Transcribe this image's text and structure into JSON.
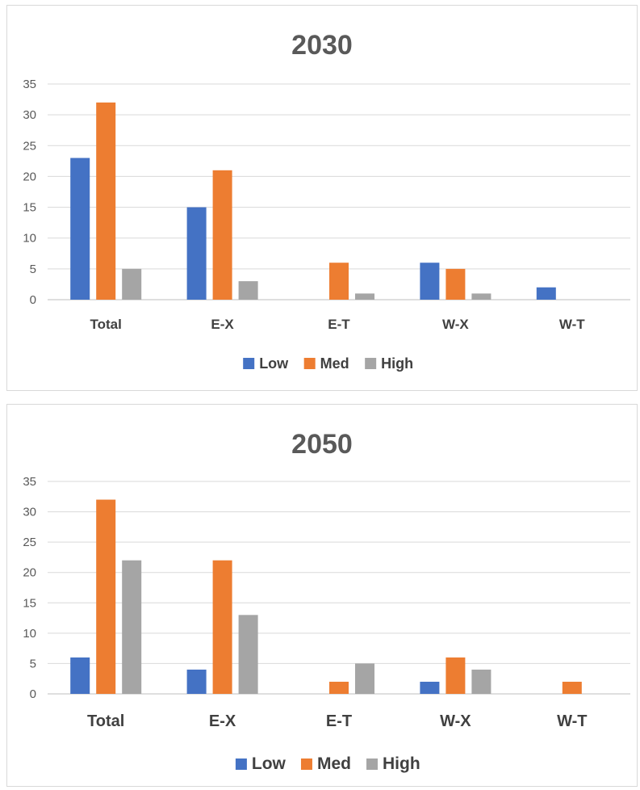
{
  "colors": {
    "Low": "#4472c4",
    "Med": "#ed7d31",
    "High": "#a5a5a5",
    "grid": "#d9d9d9",
    "axis": "#bfbfbf"
  },
  "chart_data": [
    {
      "type": "bar",
      "title": "2030",
      "categories": [
        "Total",
        "E-X",
        "E-T",
        "W-X",
        "W-T"
      ],
      "series": [
        {
          "name": "Low",
          "values": [
            23,
            15,
            0,
            6,
            2
          ]
        },
        {
          "name": "Med",
          "values": [
            32,
            21,
            6,
            5,
            0
          ]
        },
        {
          "name": "High",
          "values": [
            5,
            3,
            1,
            1,
            0
          ]
        }
      ],
      "ylim": [
        0,
        35
      ],
      "yticks": [
        0,
        5,
        10,
        15,
        20,
        25,
        30,
        35
      ],
      "grid": true,
      "legend": "bottom"
    },
    {
      "type": "bar",
      "title": "2050",
      "categories": [
        "Total",
        "E-X",
        "E-T",
        "W-X",
        "W-T"
      ],
      "series": [
        {
          "name": "Low",
          "values": [
            6,
            4,
            0,
            2,
            0
          ]
        },
        {
          "name": "Med",
          "values": [
            32,
            22,
            2,
            6,
            2
          ]
        },
        {
          "name": "High",
          "values": [
            22,
            13,
            5,
            4,
            0
          ]
        }
      ],
      "ylim": [
        0,
        35
      ],
      "yticks": [
        0,
        5,
        10,
        15,
        20,
        25,
        30,
        35
      ],
      "grid": true,
      "legend": "bottom"
    }
  ]
}
